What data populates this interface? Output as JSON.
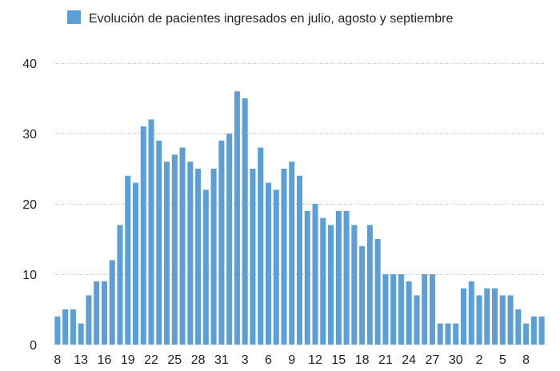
{
  "chart_data": {
    "type": "bar",
    "legend": {
      "label": "Evolución de pacientes ingresados en julio, agosto y septiembre",
      "position": "top-center"
    },
    "series": [
      {
        "name": "Evolución de pacientes ingresados en julio, agosto y septiembre",
        "color": "#5b9fd6",
        "values": [
          4,
          5,
          5,
          3,
          7,
          9,
          9,
          12,
          17,
          24,
          23,
          31,
          32,
          29,
          26,
          27,
          28,
          26,
          25,
          22,
          25,
          29,
          30,
          36,
          35,
          25,
          28,
          23,
          22,
          25,
          26,
          24,
          19,
          20,
          18,
          17,
          19,
          19,
          17,
          14,
          17,
          15,
          10,
          10,
          10,
          9,
          7,
          10,
          10,
          3,
          3,
          3,
          8,
          9,
          7,
          8,
          8,
          7,
          7,
          5,
          3,
          4,
          4
        ]
      }
    ],
    "x_tick_labels": [
      "8",
      "13",
      "16",
      "19",
      "22",
      "25",
      "28",
      "31",
      "3",
      "6",
      "9",
      "12",
      "15",
      "18",
      "21",
      "24",
      "27",
      "30",
      "2",
      "5",
      "8"
    ],
    "x_tick_every": 3,
    "x_tick_start_index": 0,
    "y_tick_labels": [
      "0",
      "10",
      "20",
      "30",
      "40"
    ],
    "ylim": [
      0,
      40
    ],
    "grid": true,
    "title": "",
    "xlabel": "",
    "ylabel": ""
  }
}
